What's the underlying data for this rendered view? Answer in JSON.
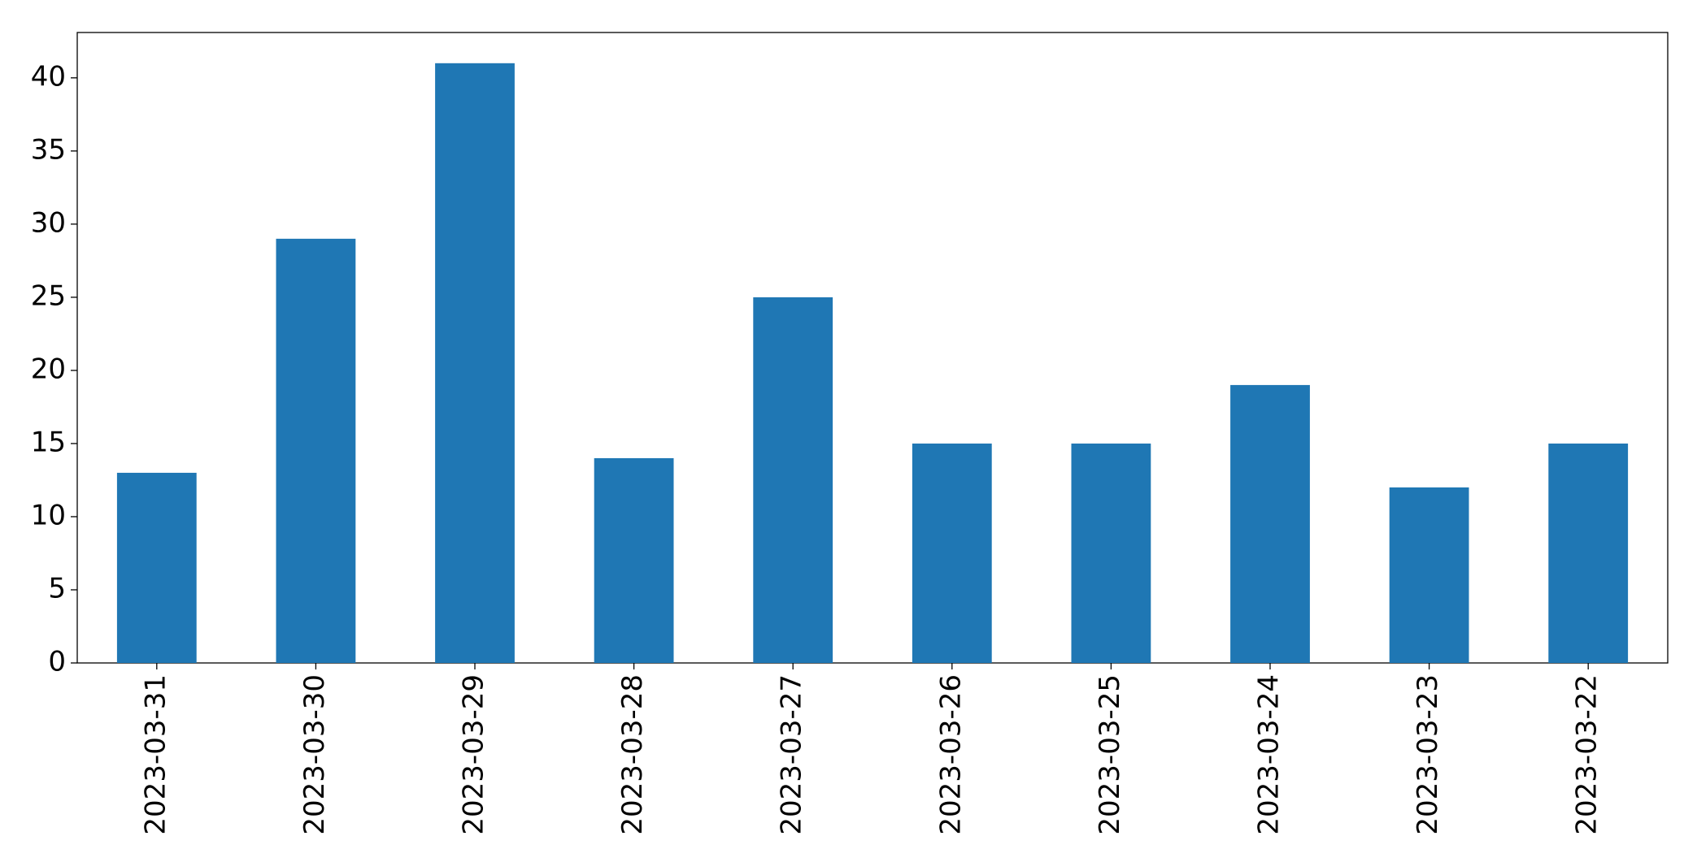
{
  "chart_data": {
    "type": "bar",
    "categories": [
      "2023-03-31",
      "2023-03-30",
      "2023-03-29",
      "2023-03-28",
      "2023-03-27",
      "2023-03-26",
      "2023-03-25",
      "2023-03-24",
      "2023-03-23",
      "2023-03-22"
    ],
    "values": [
      13,
      29,
      41,
      14,
      25,
      15,
      15,
      19,
      12,
      15
    ],
    "color": "#1f77b4",
    "ylim": [
      0,
      43.1
    ],
    "yticks": [
      0,
      5,
      10,
      15,
      20,
      25,
      30,
      35,
      40
    ],
    "grid": false
  }
}
